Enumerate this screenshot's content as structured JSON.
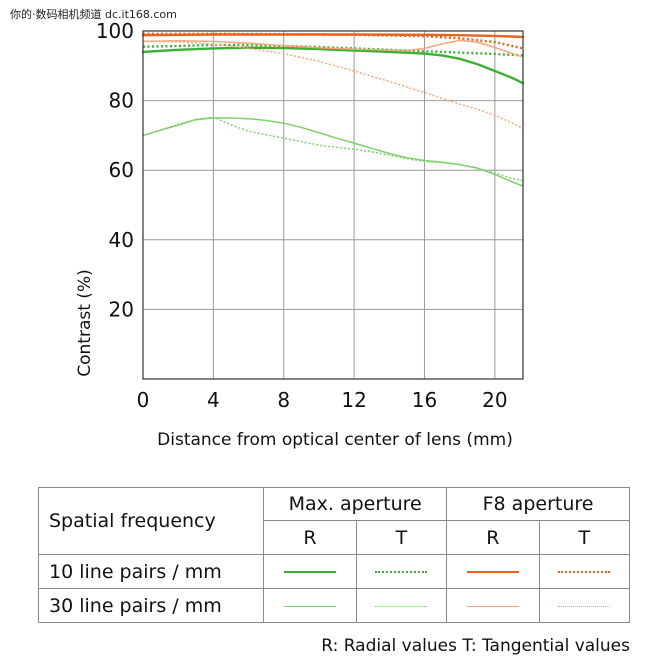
{
  "watermark": "你的·数码相机频道 dc.it168.com",
  "chart_data": {
    "type": "line",
    "xlabel": "Distance from optical center of lens (mm)",
    "ylabel": "Contrast (%)",
    "xlim": [
      0,
      21.6
    ],
    "ylim": [
      0,
      100
    ],
    "xticks": [
      0,
      4,
      8,
      12,
      16,
      20
    ],
    "yticks": [
      20,
      40,
      60,
      80,
      100
    ],
    "grid": "vertical",
    "series": [
      {
        "name": "10 line pairs / mm, Max. aperture, R",
        "color": "#3cb034",
        "dash": "solid",
        "width": 2.4,
        "x": [
          0,
          2,
          4,
          6,
          8,
          10,
          12,
          14,
          16,
          17,
          18,
          19,
          20,
          21,
          21.6
        ],
        "y": [
          94,
          94.6,
          95,
          95.2,
          95.1,
          94.8,
          94.4,
          94,
          93.5,
          93,
          92,
          90.5,
          88.5,
          86.5,
          85
        ]
      },
      {
        "name": "10 line pairs / mm, Max. aperture, T",
        "color": "#3cb034",
        "dash": "dotted",
        "width": 2.4,
        "x": [
          0,
          2,
          4,
          6,
          8,
          10,
          12,
          14,
          16,
          18,
          20,
          21.6
        ],
        "y": [
          95.5,
          95.7,
          96,
          96,
          95.7,
          95.4,
          95,
          94.6,
          94.2,
          93.8,
          93.4,
          93
        ]
      },
      {
        "name": "30 line pairs / mm, Max. aperture, R",
        "color": "#7fd06f",
        "dash": "solid",
        "width": 1.5,
        "x": [
          0,
          1,
          2,
          3,
          4,
          5,
          6,
          7,
          8,
          9,
          10,
          11,
          12,
          13,
          14,
          15,
          16,
          17,
          18,
          19,
          20,
          21,
          21.6
        ],
        "y": [
          70,
          71.5,
          73,
          74.5,
          75,
          75,
          74.8,
          74.3,
          73.5,
          72.3,
          70.8,
          69.2,
          67.8,
          66.3,
          64.8,
          63.6,
          62.8,
          62.3,
          61.6,
          60.6,
          58.8,
          56.6,
          55.5
        ]
      },
      {
        "name": "30 line pairs / mm, Max. aperture, T",
        "color": "#7fd06f",
        "dash": "dotted",
        "width": 1.5,
        "x": [
          0,
          1,
          2,
          3,
          4,
          5,
          6,
          7,
          8,
          9,
          10,
          11,
          12,
          13,
          14,
          15,
          16,
          17,
          18,
          19,
          20,
          21,
          21.6
        ],
        "y": [
          70,
          71.5,
          73.2,
          74.6,
          75.3,
          73,
          71.2,
          70.2,
          69.2,
          68.2,
          67.2,
          66.6,
          66,
          65.3,
          64.3,
          63.3,
          62.5,
          62.2,
          61.6,
          60.6,
          59.2,
          57.6,
          57
        ]
      },
      {
        "name": "10 line pairs / mm, F8 aperture, R",
        "color": "#e8621c",
        "dash": "solid",
        "width": 2.4,
        "x": [
          0,
          4,
          8,
          12,
          16,
          18,
          20,
          21.6
        ],
        "y": [
          98.8,
          99,
          99,
          99,
          98.9,
          98.8,
          98.6,
          98.3
        ]
      },
      {
        "name": "10 line pairs / mm, F8 aperture, T",
        "color": "#e8621c",
        "dash": "dotted",
        "width": 2.4,
        "x": [
          0,
          4,
          8,
          12,
          16,
          18,
          20,
          21.6
        ],
        "y": [
          99.2,
          99.2,
          99.1,
          98.9,
          98.5,
          97.9,
          96.8,
          95
        ]
      },
      {
        "name": "30 line pairs / mm, F8 aperture, R",
        "color": "#f3a77c",
        "dash": "solid",
        "width": 1.5,
        "x": [
          0,
          2,
          4,
          6,
          8,
          10,
          12,
          14,
          15,
          16,
          17,
          18,
          19,
          20,
          21,
          21.6
        ],
        "y": [
          97,
          97.2,
          97,
          96.5,
          95.8,
          95.2,
          94.8,
          94.5,
          94.4,
          95,
          96.3,
          97.3,
          96.8,
          95.3,
          93.5,
          92.5
        ]
      },
      {
        "name": "30 line pairs / mm, F8 aperture, T",
        "color": "#f3a77c",
        "dash": "dotted",
        "width": 1.5,
        "x": [
          0,
          2,
          4,
          6,
          8,
          10,
          12,
          14,
          16,
          18,
          19,
          20,
          21,
          21.6
        ],
        "y": [
          97,
          96.9,
          96.2,
          95,
          93.5,
          91.3,
          88.5,
          85.5,
          82.3,
          79,
          77.5,
          75.8,
          73.5,
          72
        ]
      }
    ]
  },
  "legend": {
    "header_label": "Spatial frequency",
    "group_max": "Max. aperture",
    "group_f8": "F8 aperture",
    "col_r1": "R",
    "col_t1": "T",
    "col_r2": "R",
    "col_t2": "T",
    "row1_label": "10 line pairs / mm",
    "row2_label": "30 line pairs / mm",
    "swatches": {
      "row1_max_r": {
        "color": "#3cb034",
        "style": "solid",
        "weight": 2.4
      },
      "row1_max_t": {
        "color": "#3cb034",
        "style": "dotted",
        "weight": 2.4
      },
      "row1_f8_r": {
        "color": "#e8621c",
        "style": "solid",
        "weight": 2.4
      },
      "row1_f8_t": {
        "color": "#e8621c",
        "style": "dotted",
        "weight": 2.4
      },
      "row2_max_r": {
        "color": "#7fd06f",
        "style": "solid",
        "weight": 1.3
      },
      "row2_max_t": {
        "color": "#7fd06f",
        "style": "dotted",
        "weight": 1.3
      },
      "row2_f8_r": {
        "color": "#f3a77c",
        "style": "solid",
        "weight": 1.3
      },
      "row2_f8_t": {
        "color": "#f3a77c",
        "style": "dotted",
        "weight": 1.3
      }
    }
  },
  "footnote": "R: Radial values  T: Tangential values"
}
